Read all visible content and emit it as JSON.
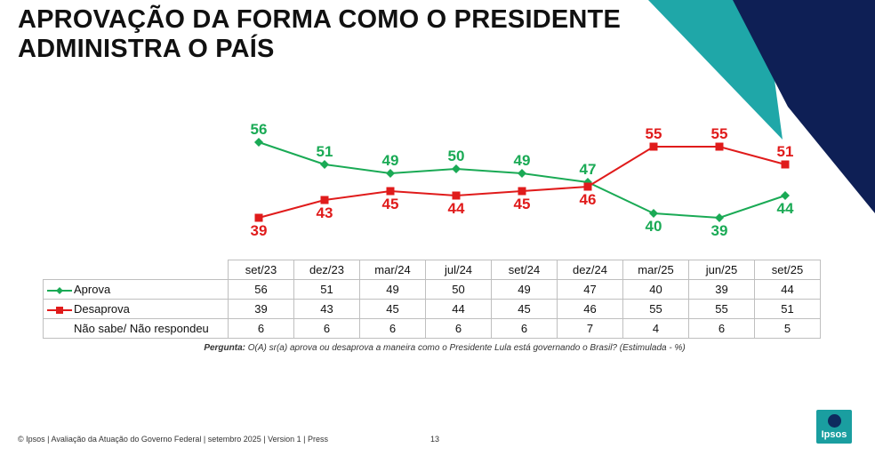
{
  "slide": {
    "title_line1": "APROVAÇÃO DA FORMA COMO O PRESIDENTE",
    "title_line2": "ADMINISTRA O PAÍS",
    "question_label": "Pergunta:",
    "question_text": " O(A) sr(a) aprova ou desaprova a maneira como o Presidente Lula está governando o Brasil? (Estimulada - %)",
    "footer_text": "© Ipsos | Avaliação da Atuação do Governo Federal | setembro 2025 | Version 1 | Press",
    "page_number": "13",
    "logo_text": "Ipsos"
  },
  "colors": {
    "aprova": "#1aaa55",
    "desaprova": "#e01b1b",
    "deco_teal": "#1fa7a8",
    "deco_navy": "#0e1f55"
  },
  "chart_data": {
    "type": "line",
    "categories": [
      "set/23",
      "dez/23",
      "mar/24",
      "jul/24",
      "set/24",
      "dez/24",
      "mar/25",
      "jun/25",
      "set/25"
    ],
    "series": [
      {
        "name": "Aprova",
        "values": [
          56,
          51,
          49,
          50,
          49,
          47,
          40,
          39,
          44
        ]
      },
      {
        "name": "Desaprova",
        "values": [
          39,
          43,
          45,
          44,
          45,
          46,
          55,
          55,
          51
        ]
      }
    ],
    "extra_row": {
      "name": "Não sabe/ Não respondeu",
      "values": [
        6,
        6,
        6,
        6,
        6,
        7,
        4,
        6,
        5
      ]
    },
    "ylim": [
      35,
      60
    ]
  }
}
